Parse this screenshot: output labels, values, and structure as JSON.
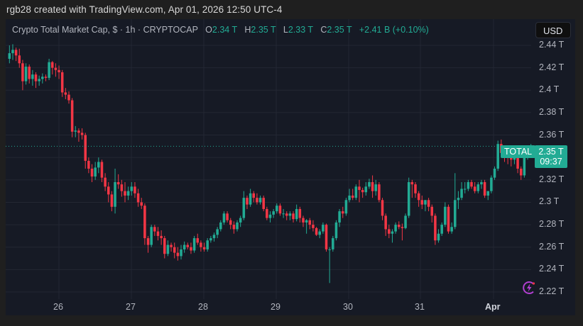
{
  "attribution": "rgb28 created with TradingView.com, Apr 01, 2026 12:50 UTC-4",
  "legend": {
    "title": "Crypto Total Market Cap, $ · 1h · CRYPTOCAP",
    "o_label": "O",
    "o_value": "2.34 T",
    "h_label": "H",
    "h_value": "2.35 T",
    "l_label": "L",
    "l_value": "2.33 T",
    "c_label": "C",
    "c_value": "2.35 T",
    "change": "+2.41 B (+0.10%)"
  },
  "currency_button": "USD",
  "price_tag": {
    "symbol": "TOTAL",
    "price": "2.35 T",
    "countdown": "09:37"
  },
  "icons": {
    "bolt": "lightning-bolt-icon"
  },
  "colors": {
    "up": "#22ab94",
    "down": "#f23645",
    "background": "#161a25",
    "grid": "#232733",
    "text": "#b2b5be"
  },
  "chart_data": {
    "type": "candlestick",
    "title": "Crypto Total Market Cap, $ · 1h · CRYPTOCAP",
    "xlabel": "",
    "ylabel": "USD",
    "unit": "T",
    "ylim": [
      2.21,
      2.455
    ],
    "yticks": [
      "2.44 T",
      "2.42 T",
      "2.4 T",
      "2.38 T",
      "2.36 T",
      "2.32 T",
      "2.3 T",
      "2.28 T",
      "2.26 T",
      "2.24 T",
      "2.22 T"
    ],
    "ytick_values": [
      2.44,
      2.42,
      2.4,
      2.38,
      2.36,
      2.32,
      2.3,
      2.28,
      2.26,
      2.24,
      2.22
    ],
    "xticks": [
      "26",
      "27",
      "28",
      "29",
      "30",
      "31",
      "Apr"
    ],
    "grid": true,
    "last_price": 2.35,
    "candles_ohlc": [
      [
        2.428,
        2.44,
        2.424,
        2.433
      ],
      [
        2.433,
        2.441,
        2.427,
        2.436
      ],
      [
        2.436,
        2.438,
        2.426,
        2.431
      ],
      [
        2.431,
        2.437,
        2.42,
        2.424
      ],
      [
        2.424,
        2.427,
        2.4,
        2.408
      ],
      [
        2.408,
        2.424,
        2.405,
        2.421
      ],
      [
        2.421,
        2.423,
        2.406,
        2.41
      ],
      [
        2.41,
        2.418,
        2.404,
        2.414
      ],
      [
        2.414,
        2.416,
        2.402,
        2.408
      ],
      [
        2.408,
        2.413,
        2.404,
        2.41
      ],
      [
        2.41,
        2.415,
        2.406,
        2.412
      ],
      [
        2.412,
        2.414,
        2.408,
        2.411
      ],
      [
        2.411,
        2.428,
        2.409,
        2.425
      ],
      [
        2.425,
        2.426,
        2.414,
        2.42
      ],
      [
        2.42,
        2.424,
        2.412,
        2.418
      ],
      [
        2.418,
        2.422,
        2.41,
        2.416
      ],
      [
        2.416,
        2.418,
        2.394,
        2.398
      ],
      [
        2.398,
        2.402,
        2.392,
        2.396
      ],
      [
        2.396,
        2.399,
        2.388,
        2.391
      ],
      [
        2.391,
        2.393,
        2.358,
        2.363
      ],
      [
        2.363,
        2.368,
        2.358,
        2.364
      ],
      [
        2.364,
        2.366,
        2.354,
        2.362
      ],
      [
        2.362,
        2.366,
        2.356,
        2.36
      ],
      [
        2.36,
        2.362,
        2.33,
        2.337
      ],
      [
        2.337,
        2.34,
        2.326,
        2.33
      ],
      [
        2.33,
        2.334,
        2.318,
        2.323
      ],
      [
        2.323,
        2.336,
        2.32,
        2.331
      ],
      [
        2.331,
        2.34,
        2.326,
        2.336
      ],
      [
        2.336,
        2.338,
        2.318,
        2.322
      ],
      [
        2.322,
        2.326,
        2.31,
        2.314
      ],
      [
        2.314,
        2.318,
        2.3,
        2.307
      ],
      [
        2.307,
        2.31,
        2.292,
        2.296
      ],
      [
        2.296,
        2.33,
        2.29,
        2.318
      ],
      [
        2.318,
        2.325,
        2.312,
        2.316
      ],
      [
        2.316,
        2.32,
        2.305,
        2.31
      ],
      [
        2.31,
        2.318,
        2.3,
        2.306
      ],
      [
        2.306,
        2.314,
        2.302,
        2.31
      ],
      [
        2.31,
        2.318,
        2.306,
        2.314
      ],
      [
        2.314,
        2.318,
        2.304,
        2.308
      ],
      [
        2.308,
        2.312,
        2.296,
        2.3
      ],
      [
        2.3,
        2.304,
        2.294,
        2.297
      ],
      [
        2.297,
        2.299,
        2.262,
        2.268
      ],
      [
        2.268,
        2.27,
        2.255,
        2.262
      ],
      [
        2.262,
        2.28,
        2.26,
        2.278
      ],
      [
        2.278,
        2.28,
        2.27,
        2.274
      ],
      [
        2.274,
        2.278,
        2.266,
        2.27
      ],
      [
        2.27,
        2.275,
        2.262,
        2.268
      ],
      [
        2.268,
        2.27,
        2.25,
        2.254
      ],
      [
        2.254,
        2.266,
        2.252,
        2.262
      ],
      [
        2.262,
        2.264,
        2.256,
        2.26
      ],
      [
        2.26,
        2.264,
        2.25,
        2.255
      ],
      [
        2.255,
        2.26,
        2.248,
        2.252
      ],
      [
        2.252,
        2.262,
        2.249,
        2.258
      ],
      [
        2.258,
        2.265,
        2.255,
        2.262
      ],
      [
        2.262,
        2.264,
        2.258,
        2.26
      ],
      [
        2.26,
        2.264,
        2.254,
        2.257
      ],
      [
        2.257,
        2.27,
        2.255,
        2.268
      ],
      [
        2.268,
        2.272,
        2.262,
        2.264
      ],
      [
        2.264,
        2.266,
        2.256,
        2.26
      ],
      [
        2.26,
        2.264,
        2.256,
        2.258
      ],
      [
        2.258,
        2.268,
        2.256,
        2.266
      ],
      [
        2.266,
        2.27,
        2.264,
        2.268
      ],
      [
        2.268,
        2.273,
        2.265,
        2.271
      ],
      [
        2.271,
        2.278,
        2.268,
        2.276
      ],
      [
        2.276,
        2.284,
        2.274,
        2.282
      ],
      [
        2.282,
        2.292,
        2.28,
        2.29
      ],
      [
        2.29,
        2.292,
        2.282,
        2.284
      ],
      [
        2.284,
        2.286,
        2.276,
        2.28
      ],
      [
        2.28,
        2.283,
        2.272,
        2.276
      ],
      [
        2.276,
        2.284,
        2.274,
        2.282
      ],
      [
        2.282,
        2.288,
        2.278,
        2.286
      ],
      [
        2.286,
        2.31,
        2.284,
        2.304
      ],
      [
        2.304,
        2.306,
        2.294,
        2.298
      ],
      [
        2.298,
        2.312,
        2.296,
        2.308
      ],
      [
        2.308,
        2.31,
        2.3,
        2.304
      ],
      [
        2.304,
        2.308,
        2.298,
        2.3
      ],
      [
        2.3,
        2.306,
        2.298,
        2.304
      ],
      [
        2.304,
        2.306,
        2.292,
        2.294
      ],
      [
        2.294,
        2.296,
        2.284,
        2.286
      ],
      [
        2.286,
        2.292,
        2.282,
        2.289
      ],
      [
        2.289,
        2.294,
        2.286,
        2.292
      ],
      [
        2.292,
        2.299,
        2.29,
        2.297
      ],
      [
        2.297,
        2.299,
        2.288,
        2.29
      ],
      [
        2.29,
        2.294,
        2.286,
        2.29
      ],
      [
        2.29,
        2.292,
        2.284,
        2.288
      ],
      [
        2.288,
        2.292,
        2.284,
        2.29
      ],
      [
        2.29,
        2.292,
        2.282,
        2.285
      ],
      [
        2.285,
        2.298,
        2.283,
        2.294
      ],
      [
        2.294,
        2.296,
        2.282,
        2.286
      ],
      [
        2.286,
        2.288,
        2.278,
        2.282
      ],
      [
        2.282,
        2.285,
        2.272,
        2.284
      ],
      [
        2.284,
        2.286,
        2.276,
        2.28
      ],
      [
        2.28,
        2.284,
        2.274,
        2.277
      ],
      [
        2.277,
        2.278,
        2.27,
        2.271
      ],
      [
        2.271,
        2.276,
        2.268,
        2.274
      ],
      [
        2.274,
        2.282,
        2.272,
        2.28
      ],
      [
        2.28,
        2.281,
        2.256,
        2.258
      ],
      [
        2.258,
        2.26,
        2.228,
        2.258
      ],
      [
        2.258,
        2.27,
        2.256,
        2.268
      ],
      [
        2.268,
        2.284,
        2.266,
        2.282
      ],
      [
        2.282,
        2.294,
        2.278,
        2.292
      ],
      [
        2.292,
        2.296,
        2.286,
        2.29
      ],
      [
        2.29,
        2.304,
        2.288,
        2.302
      ],
      [
        2.302,
        2.312,
        2.3,
        2.306
      ],
      [
        2.306,
        2.312,
        2.302,
        2.304
      ],
      [
        2.304,
        2.316,
        2.302,
        2.314
      ],
      [
        2.314,
        2.32,
        2.3,
        2.311
      ],
      [
        2.311,
        2.313,
        2.304,
        2.309
      ],
      [
        2.309,
        2.318,
        2.306,
        2.314
      ],
      [
        2.314,
        2.321,
        2.312,
        2.318
      ],
      [
        2.318,
        2.324,
        2.304,
        2.31
      ],
      [
        2.31,
        2.32,
        2.306,
        2.316
      ],
      [
        2.316,
        2.318,
        2.3,
        2.302
      ],
      [
        2.302,
        2.304,
        2.284,
        2.288
      ],
      [
        2.288,
        2.29,
        2.27,
        2.276
      ],
      [
        2.276,
        2.28,
        2.268,
        2.272
      ],
      [
        2.272,
        2.276,
        2.264,
        2.274
      ],
      [
        2.274,
        2.282,
        2.272,
        2.28
      ],
      [
        2.28,
        2.283,
        2.276,
        2.278
      ],
      [
        2.278,
        2.281,
        2.266,
        2.277
      ],
      [
        2.277,
        2.29,
        2.276,
        2.288
      ],
      [
        2.288,
        2.322,
        2.286,
        2.318
      ],
      [
        2.318,
        2.32,
        2.304,
        2.316
      ],
      [
        2.316,
        2.318,
        2.304,
        2.308
      ],
      [
        2.308,
        2.31,
        2.296,
        2.302
      ],
      [
        2.302,
        2.306,
        2.294,
        2.298
      ],
      [
        2.298,
        2.302,
        2.292,
        2.302
      ],
      [
        2.302,
        2.304,
        2.292,
        2.296
      ],
      [
        2.296,
        2.298,
        2.282,
        2.288
      ],
      [
        2.288,
        2.29,
        2.262,
        2.266
      ],
      [
        2.266,
        2.276,
        2.264,
        2.272
      ],
      [
        2.272,
        2.282,
        2.27,
        2.28
      ],
      [
        2.28,
        2.3,
        2.278,
        2.296
      ],
      [
        2.296,
        2.298,
        2.272,
        2.274
      ],
      [
        2.274,
        2.282,
        2.272,
        2.278
      ],
      [
        2.278,
        2.326,
        2.276,
        2.302
      ],
      [
        2.302,
        2.31,
        2.294,
        2.304
      ],
      [
        2.304,
        2.318,
        2.302,
        2.312
      ],
      [
        2.312,
        2.318,
        2.308,
        2.312
      ],
      [
        2.312,
        2.32,
        2.31,
        2.318
      ],
      [
        2.318,
        2.32,
        2.312,
        2.314
      ],
      [
        2.314,
        2.318,
        2.308,
        2.31
      ],
      [
        2.31,
        2.318,
        2.308,
        2.316
      ],
      [
        2.316,
        2.32,
        2.312,
        2.318
      ],
      [
        2.318,
        2.32,
        2.304,
        2.306
      ],
      [
        2.306,
        2.31,
        2.302,
        2.31
      ],
      [
        2.31,
        2.324,
        2.308,
        2.322
      ],
      [
        2.322,
        2.332,
        2.32,
        2.33
      ],
      [
        2.33,
        2.355,
        2.328,
        2.352
      ],
      [
        2.352,
        2.356,
        2.34,
        2.344
      ],
      [
        2.344,
        2.348,
        2.336,
        2.342
      ],
      [
        2.342,
        2.346,
        2.334,
        2.34
      ],
      [
        2.34,
        2.344,
        2.332,
        2.338
      ],
      [
        2.338,
        2.344,
        2.334,
        2.342
      ],
      [
        2.342,
        2.344,
        2.326,
        2.33
      ],
      [
        2.33,
        2.332,
        2.32,
        2.324
      ],
      [
        2.324,
        2.342,
        2.322,
        2.34
      ],
      [
        2.34,
        2.348,
        2.338,
        2.346
      ],
      [
        2.346,
        2.352,
        2.342,
        2.35
      ]
    ]
  }
}
